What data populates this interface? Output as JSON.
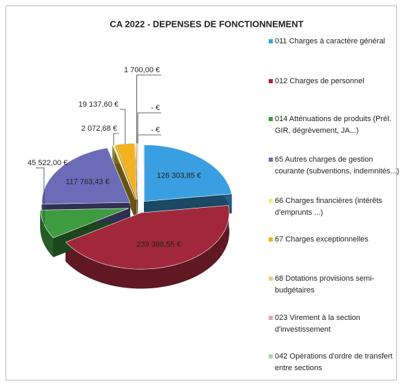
{
  "chart_data": {
    "type": "pie",
    "title": "CA 2022 - DEPENSES DE FONCTIONNEMENT",
    "categories": [
      "011 Charges à caractère général",
      "012 Charges de personnel",
      "014 Atténuations de produits (Prél. GIR, dégrèvement, JA...)",
      "65 Autres charges de gestion courante (subventions, indemnités...)",
      "66 Charges financières (intérêts d'emprunts ...)",
      "67 Charges exceptionnelles",
      "68 Dotations provisions semi-budgétaires",
      "023 Virement à la section d'investissement",
      "042 Opérations d'ordre de transfert entre sections"
    ],
    "values": [
      126303.85,
      239388.55,
      45522.0,
      117763.43,
      2072.68,
      19137.6,
      1700.0,
      0,
      0
    ],
    "value_labels": [
      "126 303,85 €",
      "239 388,55 €",
      "45 522,00 €",
      "117 763,43 €",
      "2 072,68 €",
      "19 137,60 €",
      "1 700,00 €",
      "- €",
      "- €"
    ],
    "colors": [
      "#3a9fe0",
      "#a0283a",
      "#3f9b3f",
      "#6b6bb8",
      "#f2ee7a",
      "#f1b21e",
      "#f6c98c",
      "#e8a0b8",
      "#a9d8a9"
    ],
    "legend": "right"
  }
}
